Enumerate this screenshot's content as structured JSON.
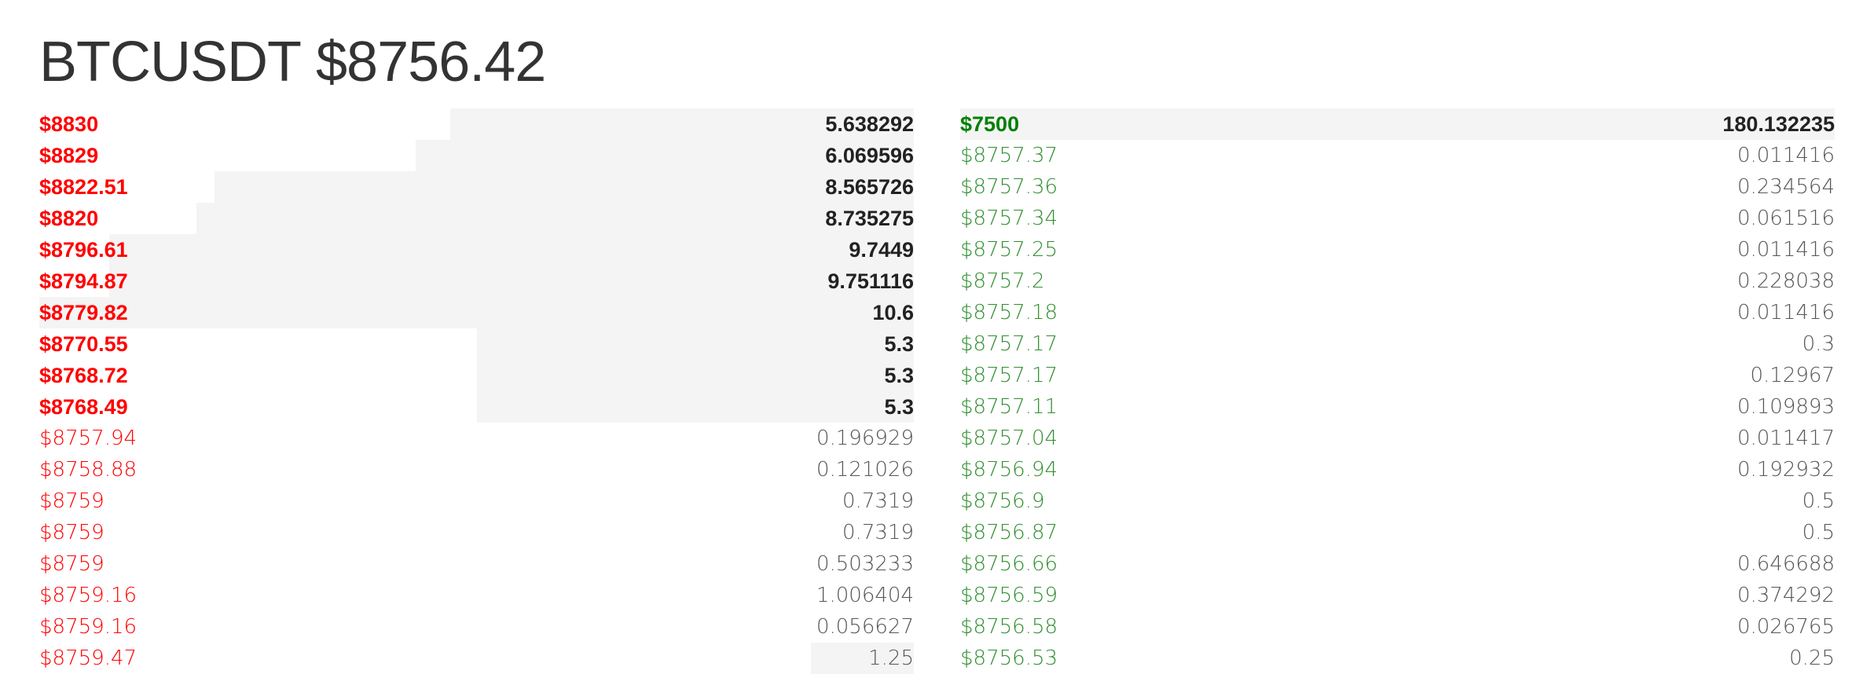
{
  "header": {
    "symbol": "BTCUSDT",
    "price": "$8756.42"
  },
  "colors": {
    "ask": "#ff0000",
    "bid": "#008000",
    "depth_bar": "#f4f4f4",
    "text": "#333333"
  },
  "asks": [
    {
      "price": "$8830",
      "qty": "5.638292",
      "large": true,
      "depth": 0.53
    },
    {
      "price": "$8829",
      "qty": "6.069596",
      "large": true,
      "depth": 0.57
    },
    {
      "price": "$8822.51",
      "qty": "8.565726",
      "large": true,
      "depth": 0.8
    },
    {
      "price": "$8820",
      "qty": "8.735275",
      "large": true,
      "depth": 0.82
    },
    {
      "price": "$8796.61",
      "qty": "9.7449",
      "large": true,
      "depth": 0.92
    },
    {
      "price": "$8794.87",
      "qty": "9.751116",
      "large": true,
      "depth": 0.92
    },
    {
      "price": "$8779.82",
      "qty": "10.6",
      "large": true,
      "depth": 1.0
    },
    {
      "price": "$8770.55",
      "qty": "5.3",
      "large": true,
      "depth": 0.5
    },
    {
      "price": "$8768.72",
      "qty": "5.3",
      "large": true,
      "depth": 0.5
    },
    {
      "price": "$8768.49",
      "qty": "5.3",
      "large": true,
      "depth": 0.5
    },
    {
      "price": "$8757.94",
      "qty": "0.196929",
      "large": false,
      "depth": 0.0
    },
    {
      "price": "$8758.88",
      "qty": "0.121026",
      "large": false,
      "depth": 0.0
    },
    {
      "price": "$8759",
      "qty": "0.7319",
      "large": false,
      "depth": 0.0
    },
    {
      "price": "$8759",
      "qty": "0.7319",
      "large": false,
      "depth": 0.0
    },
    {
      "price": "$8759",
      "qty": "0.503233",
      "large": false,
      "depth": 0.0
    },
    {
      "price": "$8759.16",
      "qty": "1.006404",
      "large": false,
      "depth": 0.0
    },
    {
      "price": "$8759.16",
      "qty": "0.056627",
      "large": false,
      "depth": 0.0
    },
    {
      "price": "$8759.47",
      "qty": "1.25",
      "large": false,
      "depth": 0.118
    }
  ],
  "bids": [
    {
      "price": "$7500",
      "qty": "180.132235",
      "large": true,
      "depth": 1.0
    },
    {
      "price": "$8757.37",
      "qty": "0.011416",
      "large": false,
      "depth": 0.0
    },
    {
      "price": "$8757.36",
      "qty": "0.234564",
      "large": false,
      "depth": 0.0
    },
    {
      "price": "$8757.34",
      "qty": "0.061516",
      "large": false,
      "depth": 0.0
    },
    {
      "price": "$8757.25",
      "qty": "0.011416",
      "large": false,
      "depth": 0.0
    },
    {
      "price": "$8757.2",
      "qty": "0.228038",
      "large": false,
      "depth": 0.0
    },
    {
      "price": "$8757.18",
      "qty": "0.011416",
      "large": false,
      "depth": 0.0
    },
    {
      "price": "$8757.17",
      "qty": "0.3",
      "large": false,
      "depth": 0.0
    },
    {
      "price": "$8757.17",
      "qty": "0.12967",
      "large": false,
      "depth": 0.0
    },
    {
      "price": "$8757.11",
      "qty": "0.109893",
      "large": false,
      "depth": 0.0
    },
    {
      "price": "$8757.04",
      "qty": "0.011417",
      "large": false,
      "depth": 0.0
    },
    {
      "price": "$8756.94",
      "qty": "0.192932",
      "large": false,
      "depth": 0.0
    },
    {
      "price": "$8756.9",
      "qty": "0.5",
      "large": false,
      "depth": 0.0
    },
    {
      "price": "$8756.87",
      "qty": "0.5",
      "large": false,
      "depth": 0.0
    },
    {
      "price": "$8756.66",
      "qty": "0.646688",
      "large": false,
      "depth": 0.0
    },
    {
      "price": "$8756.59",
      "qty": "0.374292",
      "large": false,
      "depth": 0.0
    },
    {
      "price": "$8756.58",
      "qty": "0.026765",
      "large": false,
      "depth": 0.0
    },
    {
      "price": "$8756.53",
      "qty": "0.25",
      "large": false,
      "depth": 0.0
    }
  ]
}
